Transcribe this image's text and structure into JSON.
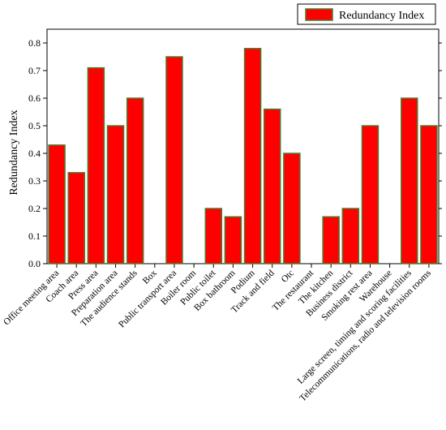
{
  "chart_data": {
    "type": "bar",
    "title": "",
    "xlabel": "",
    "ylabel": "Redundancy Index",
    "ylim": [
      0,
      0.85
    ],
    "yticks": [
      "0.0",
      "0.1",
      "0.2",
      "0.3",
      "0.4",
      "0.5",
      "0.6",
      "0.7",
      "0.8"
    ],
    "legend": {
      "label": "Redundancy Index",
      "position": "top-right"
    },
    "grid": false,
    "colors": {
      "bar_fill": "#ff0000",
      "bar_stroke": "#4d7a2e",
      "axis": "#000000"
    },
    "categories": [
      "Office meeting area",
      "Coach area",
      "Press area",
      "Preparation area",
      "The audience stands",
      "Box",
      "Public transport area",
      "Boiler room",
      "Public toilet",
      "Box bathroom",
      "Podium",
      "Track and field",
      "Otc",
      "The restaurant",
      "The kitchen",
      "Business district",
      "Smoking rest area",
      "Warehouse",
      "Large screen, timing and scoring facilities",
      "Telecommunications, radio and television rooms"
    ],
    "values": [
      0.43,
      0.33,
      0.71,
      0.5,
      0.6,
      0,
      0.75,
      0,
      0.2,
      0.17,
      0.78,
      0.56,
      0.4,
      0,
      0.17,
      0.2,
      0.5,
      0,
      0.6,
      0.5
    ]
  }
}
